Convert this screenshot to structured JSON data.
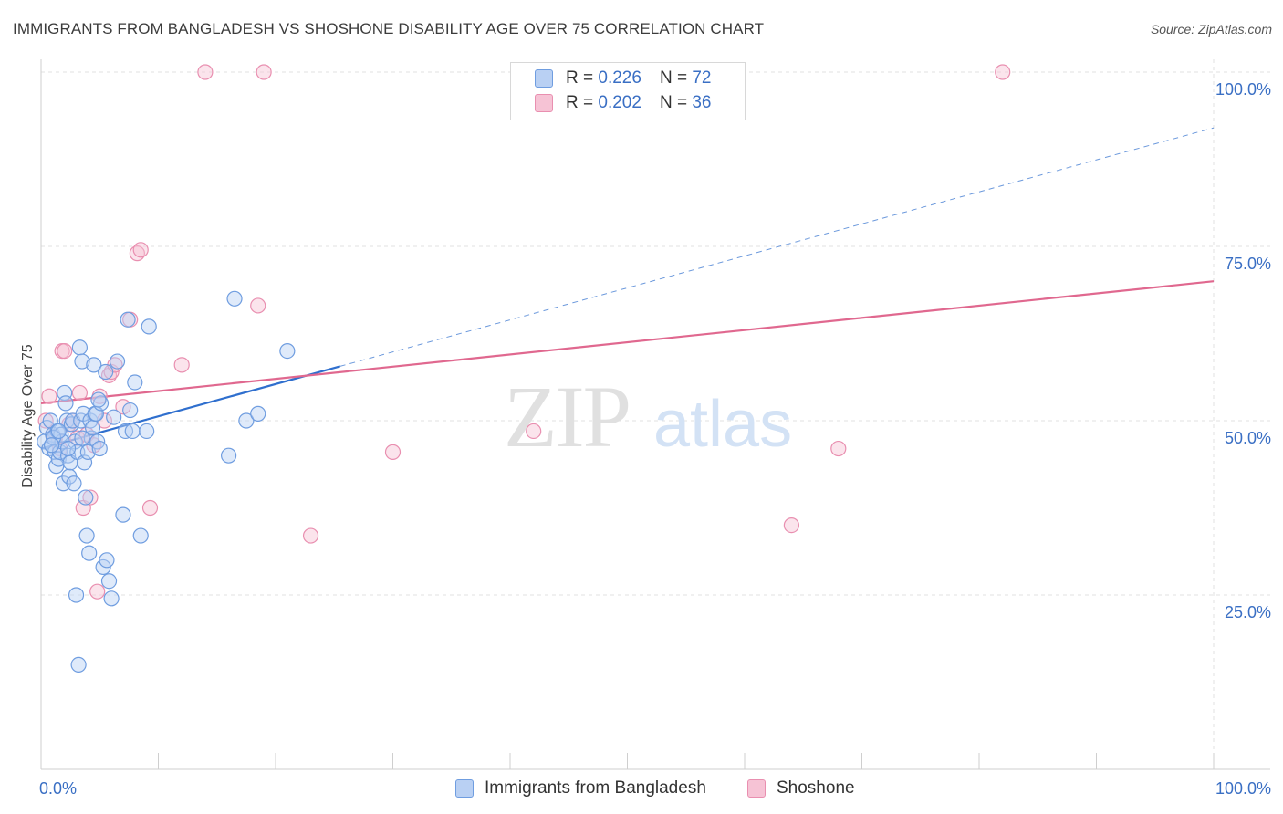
{
  "header": {
    "title": "IMMIGRANTS FROM BANGLADESH VS SHOSHONE DISABILITY AGE OVER 75 CORRELATION CHART",
    "source": "Source: ZipAtlas.com"
  },
  "legend_top": {
    "rows": [
      {
        "r_label": "R =",
        "r_value": "0.226",
        "n_label": "N =",
        "n_value": "72"
      },
      {
        "r_label": "R =",
        "r_value": "0.202",
        "n_label": "N =",
        "n_value": "36"
      }
    ]
  },
  "watermark": {
    "zip": "ZIP",
    "atlas": "atlas"
  },
  "colors": {
    "blue": "#6f9de0",
    "blue_fill": "#b9d0f3",
    "blue_line": "#2f6fce",
    "pink": "#e98fb0",
    "pink_fill": "#f6c3d5",
    "pink_line": "#e0688f",
    "tick_label": "#3a6fc4"
  },
  "chart_data": {
    "type": "scatter",
    "title": "IMMIGRANTS FROM BANGLADESH VS SHOSHONE DISABILITY AGE OVER 75 CORRELATION CHART",
    "xlabel": "",
    "ylabel": "Disability Age Over 75",
    "xlim": [
      0,
      100
    ],
    "ylim": [
      0,
      100
    ],
    "x_tick_labels": [
      "0.0%",
      "100.0%"
    ],
    "y_ticks": [
      25,
      50,
      75,
      100
    ],
    "y_tick_labels": [
      "25.0%",
      "50.0%",
      "75.0%",
      "100.0%"
    ],
    "grid": true,
    "legend_position": "bottom-center",
    "series": [
      {
        "name": "Immigrants from Bangladesh",
        "color": "#6f9de0",
        "r": 0.226,
        "n": 72,
        "trend": {
          "x0": 0,
          "y0": 46.0,
          "x1": 25.5,
          "y1": 57.8,
          "dash_x1": 100,
          "dash_y1": 92.0
        },
        "points": [
          [
            0.3,
            47
          ],
          [
            0.5,
            49
          ],
          [
            0.7,
            46
          ],
          [
            0.8,
            50
          ],
          [
            1,
            48
          ],
          [
            1.1,
            47.5
          ],
          [
            1.2,
            45.5
          ],
          [
            1.3,
            43.5
          ],
          [
            1.4,
            48.5
          ],
          [
            1.5,
            44.5
          ],
          [
            1.6,
            45.5
          ],
          [
            1.7,
            48
          ],
          [
            1.8,
            47
          ],
          [
            1.9,
            41
          ],
          [
            2,
            54
          ],
          [
            2.1,
            52.5
          ],
          [
            2.2,
            50
          ],
          [
            2.3,
            45
          ],
          [
            2.4,
            42
          ],
          [
            2.5,
            44
          ],
          [
            2.6,
            49.5
          ],
          [
            2.7,
            50
          ],
          [
            2.8,
            41
          ],
          [
            2.9,
            47
          ],
          [
            3,
            25
          ],
          [
            3.1,
            45.5
          ],
          [
            3.2,
            15
          ],
          [
            3.3,
            60.5
          ],
          [
            3.4,
            50
          ],
          [
            3.5,
            58.5
          ],
          [
            3.6,
            51
          ],
          [
            3.7,
            44
          ],
          [
            3.8,
            39
          ],
          [
            3.9,
            33.5
          ],
          [
            4,
            45.5
          ],
          [
            4.1,
            31
          ],
          [
            4.2,
            50
          ],
          [
            4.3,
            47.5
          ],
          [
            4.4,
            49
          ],
          [
            4.5,
            58
          ],
          [
            4.6,
            51
          ],
          [
            4.7,
            51
          ],
          [
            4.8,
            47
          ],
          [
            5,
            46
          ],
          [
            5.1,
            52.5
          ],
          [
            5.3,
            29
          ],
          [
            5.5,
            57
          ],
          [
            5.6,
            30
          ],
          [
            5.8,
            27
          ],
          [
            6,
            24.5
          ],
          [
            6.2,
            50.5
          ],
          [
            6.5,
            58.5
          ],
          [
            7,
            36.5
          ],
          [
            7.2,
            48.5
          ],
          [
            7.4,
            64.5
          ],
          [
            7.6,
            51.5
          ],
          [
            7.8,
            48.5
          ],
          [
            8,
            55.5
          ],
          [
            8.5,
            33.5
          ],
          [
            9,
            48.5
          ],
          [
            9.2,
            63.5
          ],
          [
            16,
            45
          ],
          [
            16.5,
            67.5
          ],
          [
            17.5,
            50
          ],
          [
            18.5,
            51
          ],
          [
            21,
            60
          ],
          [
            1.05,
            47.6
          ],
          [
            1.5,
            48.5
          ],
          [
            0.9,
            46.5
          ],
          [
            2.3,
            46
          ],
          [
            3.5,
            47.5
          ],
          [
            4.9,
            53
          ]
        ]
      },
      {
        "name": "Shoshone",
        "color": "#e98fb0",
        "r": 0.202,
        "n": 36,
        "trend": {
          "x0": 0,
          "y0": 52.5,
          "x1": 100,
          "y1": 70.0
        },
        "points": [
          [
            0.4,
            50
          ],
          [
            0.7,
            53.5
          ],
          [
            1,
            48
          ],
          [
            1.2,
            47.5
          ],
          [
            1.6,
            46
          ],
          [
            1.8,
            60
          ],
          [
            2,
            60
          ],
          [
            2.4,
            49.5
          ],
          [
            2.7,
            50
          ],
          [
            3.1,
            47.5
          ],
          [
            3.3,
            54
          ],
          [
            3.6,
            37.5
          ],
          [
            3.9,
            48
          ],
          [
            4.2,
            39
          ],
          [
            4.5,
            46.5
          ],
          [
            4.8,
            25.5
          ],
          [
            5,
            53.5
          ],
          [
            5.4,
            50
          ],
          [
            5.8,
            56.5
          ],
          [
            6,
            57
          ],
          [
            6.3,
            58
          ],
          [
            7,
            52
          ],
          [
            7.6,
            64.5
          ],
          [
            8.2,
            74
          ],
          [
            8.5,
            74.5
          ],
          [
            9.3,
            37.5
          ],
          [
            12,
            58
          ],
          [
            14,
            100
          ],
          [
            18.5,
            66.5
          ],
          [
            19,
            100
          ],
          [
            23,
            33.5
          ],
          [
            30,
            45.5
          ],
          [
            42,
            48.5
          ],
          [
            64,
            35
          ],
          [
            68,
            46
          ],
          [
            82,
            100
          ]
        ]
      }
    ]
  },
  "bottom_legend": {
    "items": [
      {
        "label": "Immigrants from Bangladesh"
      },
      {
        "label": "Shoshone"
      }
    ]
  }
}
